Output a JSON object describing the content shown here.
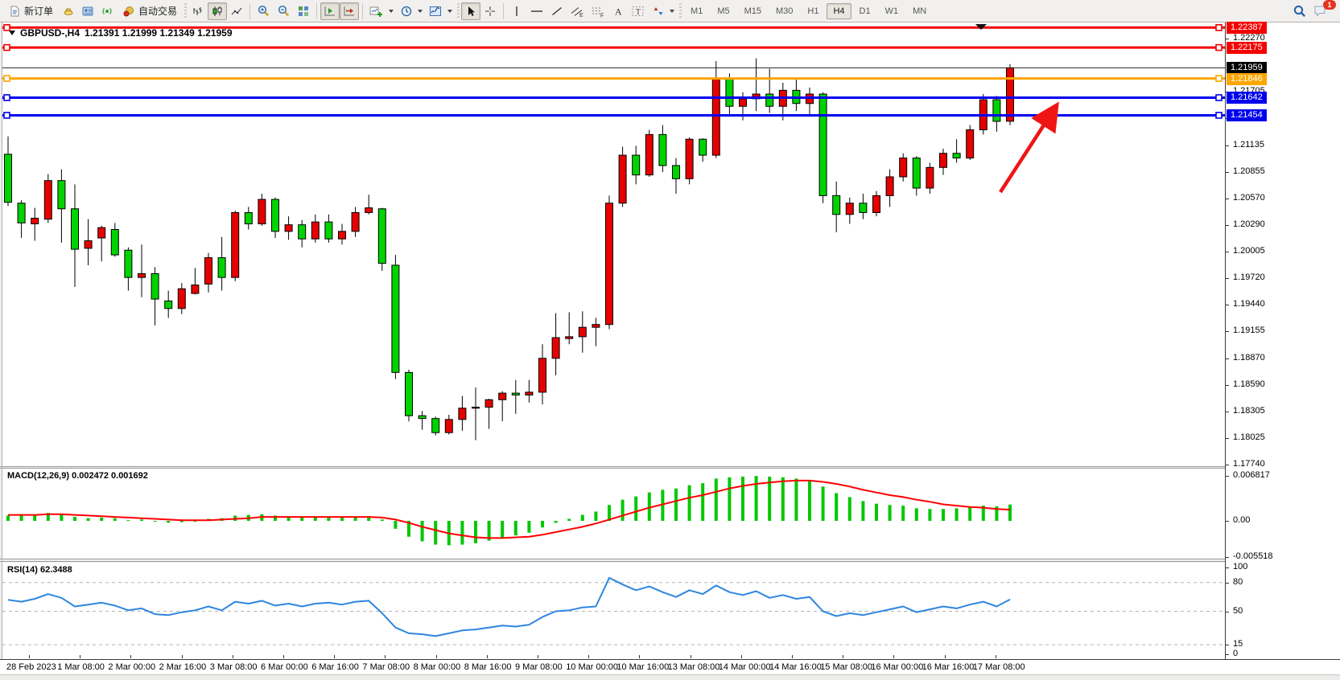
{
  "toolbar": {
    "new_order_label": "新订单",
    "auto_trading_label": "自动交易",
    "timeframes": [
      "M1",
      "M5",
      "M15",
      "M30",
      "H1",
      "H4",
      "D1",
      "W1",
      "MN"
    ],
    "active_timeframe": "H4",
    "notification_count": "1"
  },
  "chart": {
    "title": "GBPUSD-,H4",
    "ohlc_text": "1.21391 1.21999 1.21349 1.21959",
    "price_axis": [
      "1.22270",
      "1.21705",
      "1.21420",
      "1.21135",
      "1.20855",
      "1.20570",
      "1.20290",
      "1.20005",
      "1.19720",
      "1.19440",
      "1.19155",
      "1.18870",
      "1.18590",
      "1.18305",
      "1.18025",
      "1.17740"
    ]
  },
  "macd": {
    "label": "MACD(12,26,9) 0.002472 0.001692",
    "axis": [
      "0.006817",
      "0.00",
      "-0.005518"
    ]
  },
  "rsi": {
    "label": "RSI(14) 62.3488",
    "axis": [
      "100",
      "80",
      "50",
      "15",
      "0"
    ]
  },
  "dates": [
    "28 Feb 2023",
    "1 Mar 08:00",
    "2 Mar 00:00",
    "2 Mar 16:00",
    "3 Mar 08:00",
    "6 Mar 00:00",
    "6 Mar 16:00",
    "7 Mar 08:00",
    "8 Mar 00:00",
    "8 Mar 16:00",
    "9 Mar 08:00",
    "10 Mar 00:00",
    "10 Mar 16:00",
    "13 Mar 08:00",
    "14 Mar 00:00",
    "14 Mar 16:00",
    "15 Mar 08:00",
    "16 Mar 00:00",
    "16 Mar 16:00",
    "17 Mar 08:00"
  ],
  "chart_data": [
    {
      "type": "candlestick",
      "title": "GBPUSD-,H4",
      "up_color": "#e60000",
      "down_color": "#00d300",
      "wick_color": "#000000",
      "ylim": [
        1.1744,
        1.2246
      ],
      "ohlc": [
        [
          1.2104,
          1.2123,
          1.2049,
          1.2053
        ],
        [
          1.2052,
          1.2055,
          1.2015,
          1.2031
        ],
        [
          1.203,
          1.2047,
          1.2012,
          1.2036
        ],
        [
          1.2035,
          1.2083,
          1.2031,
          1.2076
        ],
        [
          1.2076,
          1.2088,
          1.201,
          1.2046
        ],
        [
          1.2046,
          1.2072,
          1.1963,
          1.2003
        ],
        [
          1.2004,
          1.2035,
          1.1986,
          1.2012
        ],
        [
          1.2015,
          1.2028,
          1.199,
          1.2026
        ],
        [
          1.2024,
          1.2031,
          1.1995,
          1.1997
        ],
        [
          1.2002,
          1.2005,
          1.1959,
          1.1973
        ],
        [
          1.1973,
          1.2008,
          1.1952,
          1.1977
        ],
        [
          1.1977,
          1.1984,
          1.1922,
          1.195
        ],
        [
          1.1948,
          1.1959,
          1.193,
          1.194
        ],
        [
          1.194,
          1.1967,
          1.1934,
          1.1961
        ],
        [
          1.1956,
          1.1983,
          1.1955,
          1.1965
        ],
        [
          1.1966,
          1.1999,
          1.1957,
          1.1994
        ],
        [
          1.1994,
          1.2016,
          1.1959,
          1.1973
        ],
        [
          1.1973,
          1.2044,
          1.1969,
          1.2042
        ],
        [
          1.2042,
          1.2048,
          1.2024,
          1.203
        ],
        [
          1.203,
          1.2062,
          1.2028,
          1.2056
        ],
        [
          1.2056,
          1.2058,
          1.2015,
          1.2022
        ],
        [
          1.2022,
          1.2038,
          1.2013,
          1.2029
        ],
        [
          1.2029,
          1.2034,
          1.2005,
          1.2014
        ],
        [
          1.2014,
          1.204,
          1.201,
          1.2032
        ],
        [
          1.2032,
          1.204,
          1.201,
          1.2014
        ],
        [
          1.2014,
          1.203,
          1.2008,
          1.2022
        ],
        [
          1.2022,
          1.2048,
          1.2016,
          1.2042
        ],
        [
          1.2042,
          1.2061,
          1.204,
          1.2047
        ],
        [
          1.2046,
          1.2047,
          1.198,
          1.1988
        ],
        [
          1.1986,
          1.1997,
          1.1865,
          1.1872
        ],
        [
          1.1872,
          1.1875,
          1.182,
          1.1826
        ],
        [
          1.1826,
          1.1831,
          1.1811,
          1.1823
        ],
        [
          1.1823,
          1.1825,
          1.1805,
          1.1808
        ],
        [
          1.1808,
          1.1827,
          1.1806,
          1.1822
        ],
        [
          1.1822,
          1.1847,
          1.181,
          1.1834
        ],
        [
          1.1834,
          1.1856,
          1.18,
          1.1835
        ],
        [
          1.1835,
          1.1844,
          1.1812,
          1.1843
        ],
        [
          1.1843,
          1.1852,
          1.182,
          1.185
        ],
        [
          1.185,
          1.1864,
          1.1828,
          1.1848
        ],
        [
          1.1848,
          1.1864,
          1.184,
          1.1851
        ],
        [
          1.1851,
          1.1902,
          1.1838,
          1.1887
        ],
        [
          1.1887,
          1.1935,
          1.1869,
          1.1909
        ],
        [
          1.1908,
          1.1936,
          1.1902,
          1.191
        ],
        [
          1.191,
          1.1937,
          1.1893,
          1.192
        ],
        [
          1.192,
          1.193,
          1.19,
          1.1923
        ],
        [
          1.1923,
          1.206,
          1.1918,
          1.2052
        ],
        [
          1.2052,
          1.2112,
          1.2048,
          1.2103
        ],
        [
          1.2103,
          1.2113,
          1.2072,
          1.2082
        ],
        [
          1.2082,
          1.213,
          1.208,
          1.2125
        ],
        [
          1.2125,
          1.2135,
          1.2085,
          1.2092
        ],
        [
          1.2092,
          1.21,
          1.2062,
          1.2078
        ],
        [
          1.2078,
          1.2122,
          1.2072,
          1.212
        ],
        [
          1.212,
          1.2121,
          1.2096,
          1.2103
        ],
        [
          1.2103,
          1.2203,
          1.21,
          1.2185
        ],
        [
          1.2185,
          1.219,
          1.2145,
          1.2155
        ],
        [
          1.2155,
          1.217,
          1.214,
          1.2163
        ],
        [
          1.2163,
          1.2206,
          1.215,
          1.2168
        ],
        [
          1.2168,
          1.2195,
          1.2148,
          1.2155
        ],
        [
          1.2155,
          1.218,
          1.214,
          1.2172
        ],
        [
          1.2172,
          1.2185,
          1.215,
          1.2158
        ],
        [
          1.2158,
          1.2175,
          1.2145,
          1.2168
        ],
        [
          1.2168,
          1.217,
          1.2052,
          1.206
        ],
        [
          1.206,
          1.2075,
          1.2021,
          1.204
        ],
        [
          1.204,
          1.2058,
          1.203,
          1.2052
        ],
        [
          1.2052,
          1.2062,
          1.2035,
          1.2042
        ],
        [
          1.2042,
          1.2065,
          1.2038,
          1.206
        ],
        [
          1.206,
          1.2088,
          1.2048,
          1.208
        ],
        [
          1.208,
          1.2105,
          1.2075,
          1.21
        ],
        [
          1.21,
          1.2102,
          1.206,
          1.2068
        ],
        [
          1.2068,
          1.2095,
          1.2062,
          1.209
        ],
        [
          1.209,
          1.211,
          1.2082,
          1.2105
        ],
        [
          1.2105,
          1.212,
          1.2095,
          1.21
        ],
        [
          1.21,
          1.2135,
          1.2098,
          1.213
        ],
        [
          1.213,
          1.2168,
          1.2125,
          1.2162
        ],
        [
          1.2162,
          1.2166,
          1.2128,
          1.2139
        ],
        [
          1.21391,
          1.21999,
          1.21349,
          1.21959
        ]
      ],
      "hlines": [
        {
          "price": 1.22387,
          "color": "#f40000"
        },
        {
          "price": 1.22175,
          "color": "#f40000"
        },
        {
          "price": 1.21846,
          "color": "#ffa500"
        },
        {
          "price": 1.21642,
          "color": "#0000ee"
        },
        {
          "price": 1.21454,
          "color": "#0000ee"
        }
      ],
      "last_price": {
        "value": 1.21959,
        "color": "#000000"
      },
      "annotation_arrow": {
        "color": "#ef1515",
        "direction": "up-right"
      }
    },
    {
      "type": "bar",
      "name": "MACD(12,26,9)",
      "bar_color": "#00c800",
      "signal_color": "#ff0000",
      "ylim": [
        -0.005518,
        0.006817
      ],
      "current_macd": 0.002472,
      "current_signal": 0.001692,
      "values": [
        0.0008,
        0.001,
        0.0009,
        0.0012,
        0.0011,
        0.0006,
        0.0004,
        0.0005,
        0.0004,
        0.0001,
        0.0002,
        -0.0001,
        -0.0003,
        -0.0002,
        0.0,
        0.0003,
        0.0004,
        0.0008,
        0.0009,
        0.001,
        0.0008,
        0.0007,
        0.0005,
        0.0005,
        0.0006,
        0.0005,
        0.0006,
        0.0007,
        0.0002,
        -0.0012,
        -0.0024,
        -0.0031,
        -0.0036,
        -0.0037,
        -0.0036,
        -0.0034,
        -0.003,
        -0.0026,
        -0.0022,
        -0.0018,
        -0.001,
        -0.0003,
        0.0003,
        0.0009,
        0.0014,
        0.0024,
        0.0032,
        0.0037,
        0.0043,
        0.0047,
        0.0049,
        0.0054,
        0.0057,
        0.0064,
        0.0066,
        0.0067,
        0.0068,
        0.0067,
        0.0066,
        0.0064,
        0.0061,
        0.0052,
        0.0042,
        0.0036,
        0.003,
        0.0026,
        0.0024,
        0.0023,
        0.0019,
        0.0018,
        0.0018,
        0.0019,
        0.0021,
        0.0023,
        0.0022,
        0.002472
      ],
      "signal": [
        0.0009,
        0.0009,
        0.0009,
        0.001,
        0.001,
        0.0009,
        0.0008,
        0.0007,
        0.0006,
        0.0005,
        0.0004,
        0.0003,
        0.0002,
        0.0001,
        0.0001,
        0.0001,
        0.0002,
        0.0003,
        0.0004,
        0.0006,
        0.0006,
        0.0006,
        0.0006,
        0.0006,
        0.0006,
        0.0006,
        0.0006,
        0.0006,
        0.0005,
        0.0002,
        -0.0003,
        -0.0009,
        -0.0014,
        -0.0019,
        -0.0022,
        -0.0025,
        -0.0026,
        -0.0026,
        -0.0025,
        -0.0024,
        -0.0021,
        -0.0017,
        -0.0013,
        -0.0009,
        -0.0004,
        0.0002,
        0.0008,
        0.0014,
        0.002,
        0.0025,
        0.003,
        0.0035,
        0.0039,
        0.0044,
        0.0049,
        0.0053,
        0.0056,
        0.0058,
        0.006,
        0.0061,
        0.0061,
        0.0059,
        0.0056,
        0.0052,
        0.0047,
        0.0043,
        0.0039,
        0.0036,
        0.0032,
        0.0029,
        0.0025,
        0.0023,
        0.0021,
        0.002,
        0.0018,
        0.001692
      ]
    },
    {
      "type": "line",
      "name": "RSI(14)",
      "line_color": "#2e86e0",
      "levels": [
        80,
        50,
        15
      ],
      "ylim": [
        0,
        100
      ],
      "current": 62.3488,
      "values": [
        62,
        60,
        63,
        68,
        64,
        55,
        57,
        59,
        56,
        51,
        53,
        47,
        46,
        49,
        51,
        55,
        51,
        60,
        58,
        61,
        56,
        58,
        55,
        58,
        59,
        57,
        60,
        61,
        48,
        33,
        27,
        26,
        24,
        27,
        30,
        31,
        33,
        35,
        34,
        36,
        44,
        50,
        51,
        54,
        55,
        85,
        78,
        72,
        76,
        70,
        65,
        72,
        68,
        77,
        70,
        67,
        71,
        64,
        67,
        63,
        65,
        50,
        45,
        48,
        46,
        49,
        52,
        55,
        49,
        52,
        55,
        53,
        57,
        60,
        55,
        62.3488
      ]
    }
  ]
}
